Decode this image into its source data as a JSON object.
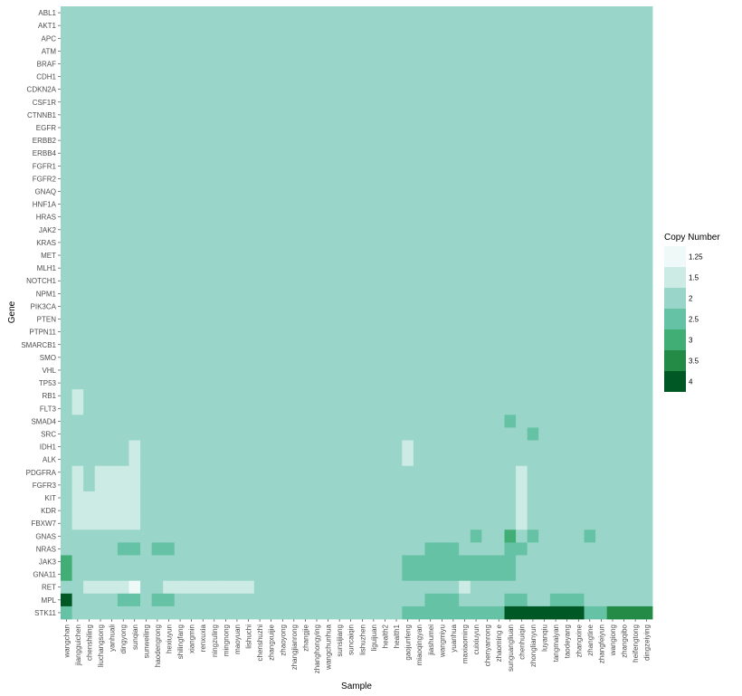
{
  "chart_data": {
    "type": "heatmap",
    "xlabel": "Sample",
    "ylabel": "Gene",
    "samples": [
      "wangchan",
      "jiangguichen",
      "chenshiling",
      "liuchangsong",
      "yanhuali",
      "dingyong",
      "sunqian",
      "sunweiling",
      "haodengrong",
      "hexiuyun",
      "shilingfang",
      "xiangmin",
      "renxuxia",
      "ningzuling",
      "mingnong",
      "maoyuan",
      "lishuchi",
      "chenshuzhi",
      "zhangxuijie",
      "zhaoyong",
      "zhangjianrong",
      "zhangjie",
      "zhanghongying",
      "wangchunhua",
      "sunsijiang",
      "suncaiqin",
      "lishuzhen",
      "liguijuan",
      "health2",
      "health1",
      "gaojunfeng",
      "miaoqingyan",
      "jiashumei",
      "wangmiyu",
      "yuanhua",
      "maxiaoming",
      "cuixiuyun",
      "chenyanrong",
      "zhaoming e",
      "sunguangliuan",
      "chenhuiqin",
      "zhonglianyun",
      "luyanqiu",
      "tangmaiyan",
      "taodeyang",
      "zhangxine",
      "zhangtine",
      "zhangfeiyun",
      "wangiong",
      "zhangqibo",
      "heifengtong",
      "dingzeiying"
    ],
    "genes": [
      "ABL1",
      "AKT1",
      "APC",
      "ATM",
      "BRAF",
      "CDH1",
      "CDKN2A",
      "CSF1R",
      "CTNNB1",
      "EGFR",
      "ERBB2",
      "ERBB4",
      "FGFR1",
      "FGFR2",
      "GNAQ",
      "HNF1A",
      "HRAS",
      "JAK2",
      "KRAS",
      "MET",
      "MLH1",
      "NOTCH1",
      "NPM1",
      "PIK3CA",
      "PTEN",
      "PTPN11",
      "SMARCB1",
      "SMO",
      "VHL",
      "TP53",
      "RB1",
      "FLT3",
      "SMAD4",
      "SRC",
      "IDH1",
      "ALK",
      "PDGFRA",
      "FGFR3",
      "KIT",
      "KDR",
      "FBXW7",
      "GNAS",
      "NRAS",
      "JAK3",
      "GNA11",
      "RET",
      "MPL",
      "STK11"
    ],
    "default_value": 2,
    "overrides": [
      {
        "gene": "RB1",
        "samples": [
          1
        ],
        "value": 1.5
      },
      {
        "gene": "FLT3",
        "samples": [
          1
        ],
        "value": 1.5
      },
      {
        "gene": "SMAD4",
        "samples": [
          39
        ],
        "value": 2.5
      },
      {
        "gene": "SRC",
        "samples": [
          41
        ],
        "value": 2.5
      },
      {
        "gene": "IDH1",
        "samples": [
          6,
          30
        ],
        "value": 1.5
      },
      {
        "gene": "ALK",
        "samples": [
          6,
          30
        ],
        "value": 1.5
      },
      {
        "gene": "PDGFRA",
        "samples": [
          1,
          3,
          4,
          5,
          6,
          40
        ],
        "value": 1.5
      },
      {
        "gene": "FGFR3",
        "samples": [
          1,
          3,
          4,
          5,
          6,
          40
        ],
        "value": 1.5
      },
      {
        "gene": "KIT",
        "samples": [
          1,
          2,
          3,
          4,
          5,
          6,
          40
        ],
        "value": 1.5
      },
      {
        "gene": "KDR",
        "samples": [
          1,
          2,
          3,
          4,
          5,
          6,
          40
        ],
        "value": 1.5
      },
      {
        "gene": "FBXW7",
        "samples": [
          1,
          2,
          3,
          4,
          5,
          6,
          40
        ],
        "value": 1.5
      },
      {
        "gene": "GNAS",
        "samples": [
          36,
          39,
          41,
          46
        ],
        "value": 2.5
      },
      {
        "gene": "GNAS",
        "samples": [
          39
        ],
        "value": 3
      },
      {
        "gene": "NRAS",
        "samples": [
          5,
          6,
          8,
          9,
          32,
          33,
          34,
          39,
          40
        ],
        "value": 2.5
      },
      {
        "gene": "JAK3",
        "samples": [
          30,
          31,
          32,
          33,
          34,
          35,
          36,
          37,
          38,
          39
        ],
        "value": 2.5
      },
      {
        "gene": "JAK3",
        "samples": [
          0
        ],
        "value": 3
      },
      {
        "gene": "GNA11",
        "samples": [
          30,
          31,
          32,
          33,
          34,
          35,
          36,
          37,
          38,
          39
        ],
        "value": 2.5
      },
      {
        "gene": "GNA11",
        "samples": [
          0
        ],
        "value": 3
      },
      {
        "gene": "RET",
        "samples": [
          2,
          3,
          4,
          5,
          9,
          10,
          11,
          12,
          13,
          14,
          15,
          16,
          35
        ],
        "value": 1.5
      },
      {
        "gene": "RET",
        "samples": [
          6
        ],
        "value": 1.25
      },
      {
        "gene": "MPL",
        "samples": [
          5,
          6,
          8,
          9,
          32,
          33,
          34,
          39,
          40,
          43,
          44,
          45
        ],
        "value": 2.5
      },
      {
        "gene": "MPL",
        "samples": [
          0
        ],
        "value": 4
      },
      {
        "gene": "STK11",
        "samples": [
          0,
          30,
          31,
          32,
          33,
          34,
          35,
          36,
          37,
          38,
          46,
          47
        ],
        "value": 2.5
      },
      {
        "gene": "STK11",
        "samples": [
          48,
          49,
          50,
          51
        ],
        "value": 3.5
      },
      {
        "gene": "STK11",
        "samples": [
          39,
          40,
          41,
          42,
          43,
          44,
          45
        ],
        "value": 4
      }
    ],
    "legend": {
      "title": "Copy Number",
      "entries": [
        {
          "label": "1.25",
          "color": "#eff9f8"
        },
        {
          "label": "1.5",
          "color": "#cdebe5"
        },
        {
          "label": "2",
          "color": "#99d6c9"
        },
        {
          "label": "2.5",
          "color": "#66c2a4"
        },
        {
          "label": "3",
          "color": "#41ae76"
        },
        {
          "label": "3.5",
          "color": "#238b45"
        },
        {
          "label": "4",
          "color": "#005824"
        }
      ]
    }
  }
}
